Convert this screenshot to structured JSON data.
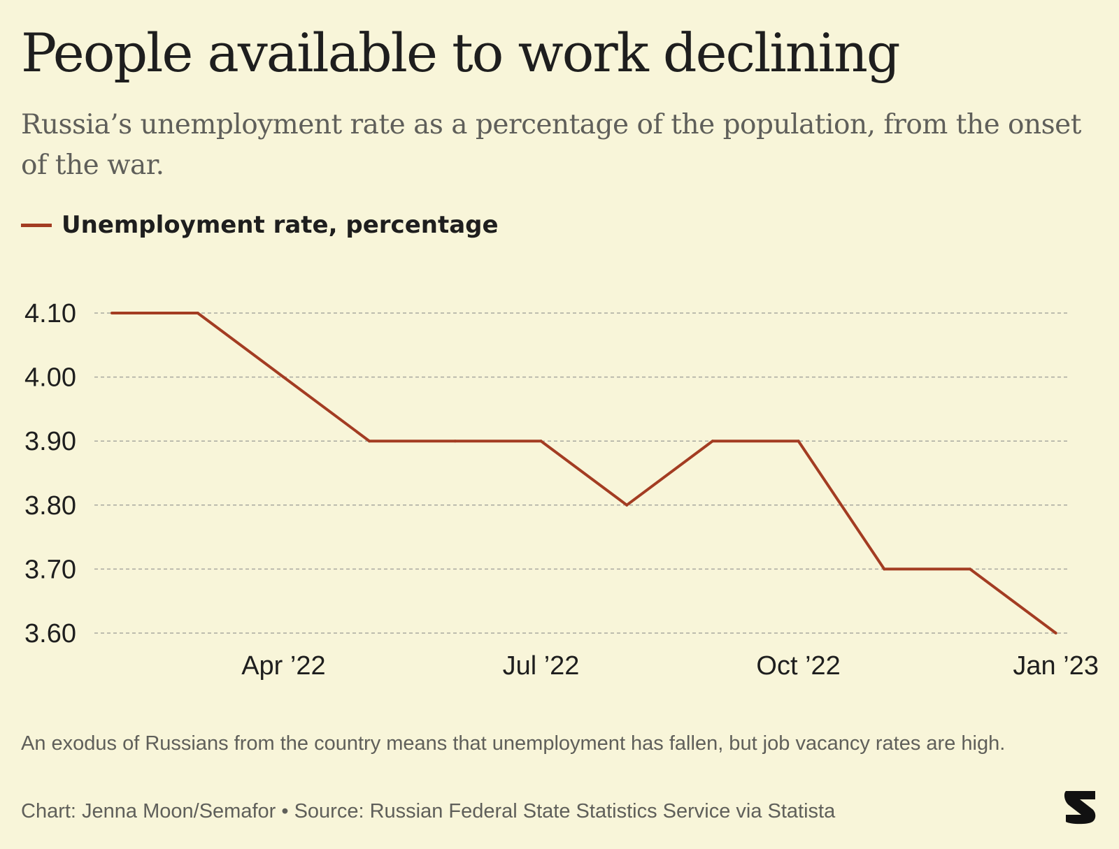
{
  "title": "People available to work declining",
  "subtitle": "Russia’s unemployment rate as a percentage of the population, from the onset of the war.",
  "legend": {
    "label": "Unemployment rate, percentage",
    "color": "#a33c22"
  },
  "footnote": "An exodus of Russians from the country means that unemployment has fallen, but job vacancy rates are high.",
  "credit": "Chart: Jenna Moon/Semafor • Source: Russian Federal State Statistics Service via Statista",
  "logo": {
    "icon": "semafor-logo-icon"
  },
  "chart_data": {
    "type": "line",
    "title": "",
    "xlabel": "",
    "ylabel": "",
    "series": [
      {
        "name": "Unemployment rate, percentage",
        "color": "#a33c22",
        "x": [
          "2022-02",
          "2022-03",
          "2022-04",
          "2022-05",
          "2022-06",
          "2022-07",
          "2022-08",
          "2022-09",
          "2022-10",
          "2022-11",
          "2022-12",
          "2023-01"
        ],
        "values": [
          4.1,
          4.1,
          4.0,
          3.9,
          3.9,
          3.9,
          3.8,
          3.9,
          3.9,
          3.7,
          3.7,
          3.6
        ]
      }
    ],
    "ylim": [
      3.6,
      4.1
    ],
    "y_ticks": [
      "4.10",
      "4.00",
      "3.90",
      "3.80",
      "3.70",
      "3.60"
    ],
    "x_ticks": [
      {
        "x": "2022-04",
        "label": "Apr ’22"
      },
      {
        "x": "2022-07",
        "label": "Jul ’22"
      },
      {
        "x": "2022-10",
        "label": "Oct ’22"
      },
      {
        "x": "2023-01",
        "label": "Jan ’23"
      }
    ],
    "grid": true,
    "gridlines": "dashed horizontal",
    "legend_position": "top-left"
  }
}
